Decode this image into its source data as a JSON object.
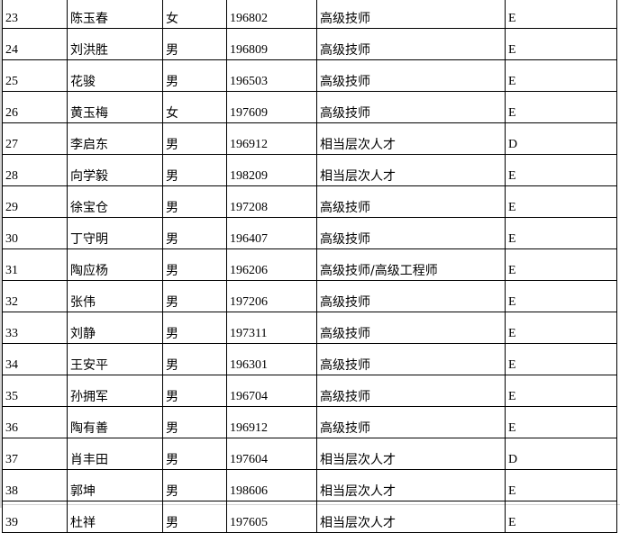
{
  "rows": [
    {
      "no": "23",
      "name": "陈玉春",
      "gender": "女",
      "birth": "196802",
      "title": "高级技师",
      "grade": "E"
    },
    {
      "no": "24",
      "name": "刘洪胜",
      "gender": "男",
      "birth": "196809",
      "title": "高级技师",
      "grade": "E"
    },
    {
      "no": "25",
      "name": "花骏",
      "gender": "男",
      "birth": "196503",
      "title": "高级技师",
      "grade": "E"
    },
    {
      "no": "26",
      "name": "黄玉梅",
      "gender": "女",
      "birth": "197609",
      "title": "高级技师",
      "grade": "E"
    },
    {
      "no": "27",
      "name": "李启东",
      "gender": "男",
      "birth": "196912",
      "title": "相当层次人才",
      "grade": "D"
    },
    {
      "no": "28",
      "name": "向学毅",
      "gender": "男",
      "birth": "198209",
      "title": "相当层次人才",
      "grade": "E"
    },
    {
      "no": "29",
      "name": "徐宝仓",
      "gender": "男",
      "birth": "197208",
      "title": "高级技师",
      "grade": "E"
    },
    {
      "no": "30",
      "name": "丁守明",
      "gender": "男",
      "birth": "196407",
      "title": "高级技师",
      "grade": "E"
    },
    {
      "no": "31",
      "name": "陶应杨",
      "gender": "男",
      "birth": "196206",
      "title": "高级技师/高级工程师",
      "grade": "E"
    },
    {
      "no": "32",
      "name": "张伟",
      "gender": "男",
      "birth": "197206",
      "title": "高级技师",
      "grade": "E"
    },
    {
      "no": "33",
      "name": "刘静",
      "gender": "男",
      "birth": "197311",
      "title": "高级技师",
      "grade": "E"
    },
    {
      "no": "34",
      "name": "王安平",
      "gender": "男",
      "birth": "196301",
      "title": "高级技师",
      "grade": "E"
    },
    {
      "no": "35",
      "name": "孙拥军",
      "gender": "男",
      "birth": "196704",
      "title": "高级技师",
      "grade": "E"
    },
    {
      "no": "36",
      "name": "陶有善",
      "gender": "男",
      "birth": "196912",
      "title": "高级技师",
      "grade": "E"
    },
    {
      "no": "37",
      "name": "肖丰田",
      "gender": "男",
      "birth": "197604",
      "title": "相当层次人才",
      "grade": "D"
    },
    {
      "no": "38",
      "name": "郭坤",
      "gender": "男",
      "birth": "198606",
      "title": "相当层次人才",
      "grade": "E"
    },
    {
      "no": "39",
      "name": "杜祥",
      "gender": "男",
      "birth": "197605",
      "title": "相当层次人才",
      "grade": "E"
    }
  ]
}
